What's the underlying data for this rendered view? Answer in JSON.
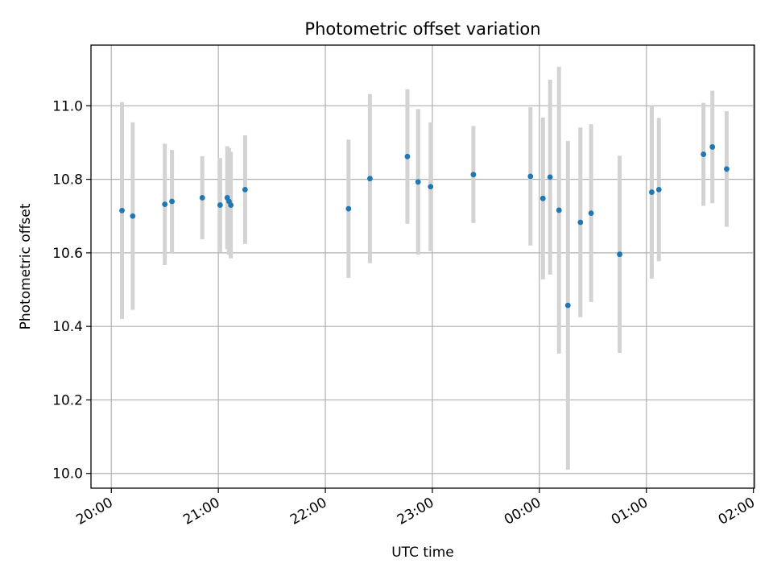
{
  "chart_data": {
    "type": "scatter",
    "title": "Photometric offset variation",
    "xlabel": "UTC time",
    "ylabel": "Photometric offset",
    "x_ticks": [
      "20:00",
      "21:00",
      "22:00",
      "23:00",
      "00:00",
      "01:00",
      "02:00"
    ],
    "y_ticks": [
      "10.0",
      "10.2",
      "10.4",
      "10.6",
      "10.8",
      "11.0"
    ],
    "xlim_minutes_after_20h": [
      -11.4,
      360.6
    ],
    "ylim": [
      9.96,
      11.165
    ],
    "grid": true,
    "point_color": "#1f77b4",
    "errorbar_color": "#d3d3d3",
    "points": [
      {
        "t": "20:06",
        "y": 10.715,
        "err": 0.295
      },
      {
        "t": "20:12",
        "y": 10.7,
        "err": 0.255
      },
      {
        "t": "20:30",
        "y": 10.732,
        "err": 0.165
      },
      {
        "t": "20:34",
        "y": 10.74,
        "err": 0.14
      },
      {
        "t": "20:51",
        "y": 10.75,
        "err": 0.113
      },
      {
        "t": "21:01",
        "y": 10.73,
        "err": 0.128
      },
      {
        "t": "21:05",
        "y": 10.75,
        "err": 0.14
      },
      {
        "t": "21:06",
        "y": 10.74,
        "err": 0.145
      },
      {
        "t": "21:07",
        "y": 10.73,
        "err": 0.145
      },
      {
        "t": "21:15",
        "y": 10.772,
        "err": 0.148
      },
      {
        "t": "22:13",
        "y": 10.72,
        "err": 0.188
      },
      {
        "t": "22:25",
        "y": 10.802,
        "err": 0.23
      },
      {
        "t": "22:46",
        "y": 10.862,
        "err": 0.183
      },
      {
        "t": "22:52",
        "y": 10.793,
        "err": 0.198
      },
      {
        "t": "22:59",
        "y": 10.78,
        "err": 0.175
      },
      {
        "t": "23:23",
        "y": 10.813,
        "err": 0.132
      },
      {
        "t": "23:55",
        "y": 10.808,
        "err": 0.188
      },
      {
        "t": "00:02",
        "y": 10.748,
        "err": 0.22
      },
      {
        "t": "00:06",
        "y": 10.806,
        "err": 0.265
      },
      {
        "t": "00:11",
        "y": 10.716,
        "err": 0.39
      },
      {
        "t": "00:16",
        "y": 10.457,
        "err": 0.447
      },
      {
        "t": "00:23",
        "y": 10.683,
        "err": 0.258
      },
      {
        "t": "00:29",
        "y": 10.708,
        "err": 0.242
      },
      {
        "t": "00:45",
        "y": 10.596,
        "err": 0.268
      },
      {
        "t": "01:03",
        "y": 10.765,
        "err": 0.235
      },
      {
        "t": "01:07",
        "y": 10.772,
        "err": 0.195
      },
      {
        "t": "01:32",
        "y": 10.868,
        "err": 0.14
      },
      {
        "t": "01:37",
        "y": 10.888,
        "err": 0.153
      },
      {
        "t": "01:45",
        "y": 10.828,
        "err": 0.157
      }
    ]
  }
}
